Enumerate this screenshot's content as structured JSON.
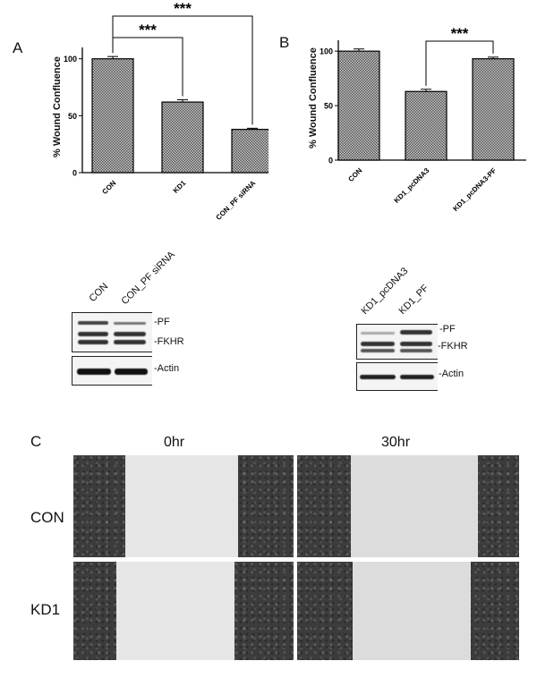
{
  "panels": {
    "a_letter": "A",
    "b_letter": "B",
    "c_letter": "C"
  },
  "chart_data": [
    {
      "type": "bar",
      "panel": "A",
      "ylabel": "% Wound Confluence",
      "categories": [
        "CON",
        "KD1",
        "CON_PF siRNA"
      ],
      "values": [
        100,
        62,
        38
      ],
      "errors": [
        2,
        2,
        1
      ],
      "ylim": [
        0,
        110
      ],
      "yticks": [
        0,
        50,
        100
      ],
      "significance": [
        {
          "from": 0,
          "to": 1,
          "label": "***"
        },
        {
          "from": 0,
          "to": 2,
          "label": "***"
        }
      ]
    },
    {
      "type": "bar",
      "panel": "B",
      "ylabel": "% Wound Confluence",
      "categories": [
        "CON",
        "KD1_pcDNA3",
        "KD1_pcDNA3-PF"
      ],
      "values": [
        100,
        63,
        93
      ],
      "errors": [
        2,
        2,
        1.5
      ],
      "ylim": [
        0,
        110
      ],
      "yticks": [
        0,
        50,
        100
      ],
      "significance": [
        {
          "from": 1,
          "to": 2,
          "label": "***"
        }
      ]
    }
  ],
  "blots": {
    "left": {
      "lanes": [
        "CON",
        "CON_PF siRNA"
      ],
      "labels": {
        "pf": "-PF",
        "fkhr": "-FKHR",
        "actin": "-Actin"
      }
    },
    "right": {
      "lanes": [
        "KD1_pcDNA3",
        "KD1_PF"
      ],
      "labels": {
        "pf": "-PF",
        "fkhr": "-FKHR",
        "actin": "-Actin"
      }
    }
  },
  "micrographs": {
    "columns": [
      "0hr",
      "30hr"
    ],
    "rows": [
      "CON",
      "KD1"
    ]
  }
}
